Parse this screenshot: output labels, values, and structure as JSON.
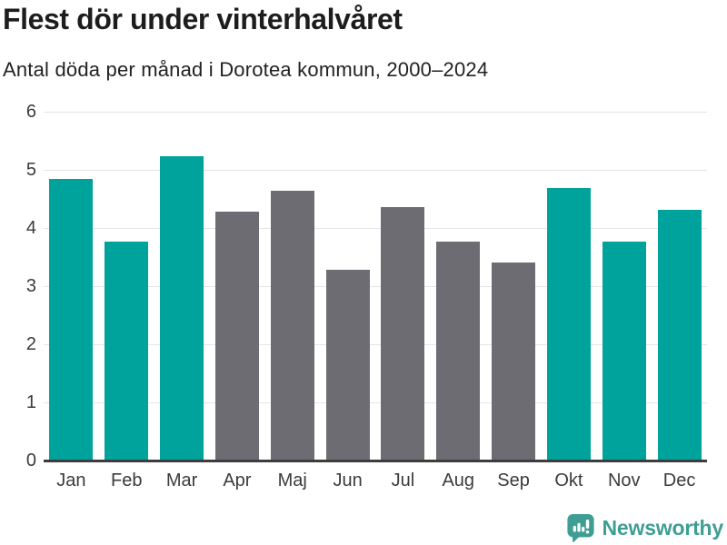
{
  "header": {
    "title": "Flest dör under vinterhalvåret",
    "subtitle": "Antal döda per månad i Dorotea kommun, 2000–2024"
  },
  "chart_data": {
    "type": "bar",
    "title": "Flest dör under vinterhalvåret",
    "subtitle": "Antal döda per månad i Dorotea kommun, 2000–2024",
    "categories": [
      "Jan",
      "Feb",
      "Mar",
      "Apr",
      "Maj",
      "Jun",
      "Jul",
      "Aug",
      "Sep",
      "Okt",
      "Nov",
      "Dec"
    ],
    "values": [
      4.84,
      3.76,
      5.24,
      4.28,
      4.64,
      3.28,
      4.36,
      3.76,
      3.4,
      4.68,
      3.76,
      4.32
    ],
    "bar_colors": [
      "#00a39b",
      "#00a39b",
      "#00a39b",
      "#6e6c73",
      "#6e6c73",
      "#6e6c73",
      "#6e6c73",
      "#6e6c73",
      "#6e6c73",
      "#00a39b",
      "#00a39b",
      "#00a39b"
    ],
    "highlighted_categories": [
      "Jan",
      "Feb",
      "Mar",
      "Okt",
      "Nov",
      "Dec"
    ],
    "xlabel": "",
    "ylabel": "",
    "ylim": [
      0,
      6
    ],
    "yticks": [
      0,
      1,
      2,
      3,
      4,
      5,
      6
    ],
    "grid": true,
    "legend": false
  },
  "footer": {
    "brand": "Newsworthy",
    "logo_icon": "bar-chart-speech-bubble-icon"
  },
  "colors": {
    "highlight_bar": "#00a39b",
    "muted_bar": "#6e6c73",
    "gridline": "#e5e5e8",
    "axis_line": "#3d3d3d",
    "tick_text": "#3b3b3b",
    "title_text": "#1d1d1d",
    "subtitle_text": "#222222",
    "brand_teal": "#3e9e94",
    "background": "#ffffff"
  }
}
